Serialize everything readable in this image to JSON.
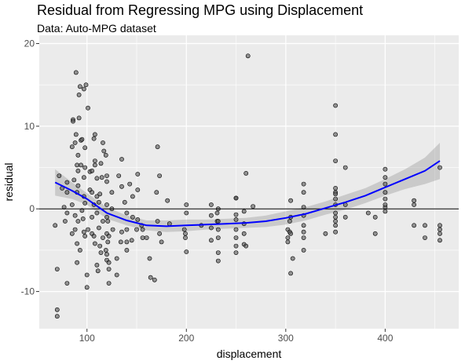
{
  "title": "Residual from Regressing MPG using Displacement",
  "subtitle": "Data: Auto-MPG dataset",
  "colors": {
    "panel_background": "#ebebeb",
    "grid_major": "#ffffff",
    "point_fill": "#555555",
    "point_stroke": "#000000",
    "smooth_line": "#0000ff",
    "confidence_band": "#999999",
    "reference_line": "#000000"
  },
  "chart_data": {
    "type": "scatter",
    "title": "Residual from Regressing MPG using Displacement",
    "subtitle": "Data: Auto-MPG dataset",
    "xlabel": "displacement",
    "ylabel": "residual",
    "xlim": [
      52,
      474
    ],
    "ylim": [
      -14.5,
      21
    ],
    "x_ticks": [
      100,
      200,
      300,
      400
    ],
    "y_ticks": [
      -10,
      0,
      10,
      20
    ],
    "x_tick_labels": [
      "100",
      "200",
      "300",
      "400"
    ],
    "y_tick_labels": [
      "-10",
      "0",
      "10",
      "20"
    ],
    "grid": true,
    "legend": "none",
    "reference_hline": 0,
    "points": [
      [
        68,
        -2
      ],
      [
        70,
        -7.3
      ],
      [
        70,
        -12.2
      ],
      [
        70,
        -13
      ],
      [
        72,
        4
      ],
      [
        75,
        2.5
      ],
      [
        77,
        0.2
      ],
      [
        78,
        -1.5
      ],
      [
        80,
        2
      ],
      [
        80,
        3.2
      ],
      [
        80,
        -0.5
      ],
      [
        80,
        -9
      ],
      [
        85,
        0.5
      ],
      [
        85,
        7.5
      ],
      [
        85,
        -3
      ],
      [
        86,
        10.8
      ],
      [
        86,
        10.6
      ],
      [
        87,
        3.5
      ],
      [
        88,
        -0.8
      ],
      [
        88,
        8
      ],
      [
        88,
        -2.5
      ],
      [
        89,
        16.5
      ],
      [
        89,
        9
      ],
      [
        90,
        5.3
      ],
      [
        90,
        2
      ],
      [
        90,
        -4.2
      ],
      [
        90,
        -6.5
      ],
      [
        91,
        4.6
      ],
      [
        91,
        6.5
      ],
      [
        91,
        2.8
      ],
      [
        91,
        -1.5
      ],
      [
        92,
        13.8
      ],
      [
        92,
        11
      ],
      [
        93,
        14.8
      ],
      [
        93,
        -5
      ],
      [
        94,
        5.3
      ],
      [
        94,
        8.3
      ],
      [
        95,
        8.4
      ],
      [
        95,
        -0.2
      ],
      [
        96,
        -1.2
      ],
      [
        97,
        14.5
      ],
      [
        97,
        3.8
      ],
      [
        97,
        1.5
      ],
      [
        97,
        -2.8
      ],
      [
        98,
        5
      ],
      [
        98,
        7.4
      ],
      [
        98,
        0.7
      ],
      [
        98,
        -3.3
      ],
      [
        99,
        15
      ],
      [
        100,
        -8
      ],
      [
        100,
        -9.5
      ],
      [
        101,
        12.2
      ],
      [
        101,
        -2.5
      ],
      [
        103,
        2.3
      ],
      [
        103,
        4.5
      ],
      [
        105,
        4.6
      ],
      [
        105,
        2
      ],
      [
        105,
        -1
      ],
      [
        105,
        -3
      ],
      [
        107,
        8.5
      ],
      [
        107,
        0.5
      ],
      [
        107,
        -3.3
      ],
      [
        108,
        9
      ],
      [
        108,
        5.8
      ],
      [
        108,
        5.3
      ],
      [
        108,
        -4.2
      ],
      [
        110,
        3.7
      ],
      [
        110,
        1.5
      ],
      [
        110,
        -0.5
      ],
      [
        110,
        -6.8
      ],
      [
        111,
        -7.5
      ],
      [
        112,
        0.8
      ],
      [
        112,
        -2.3
      ],
      [
        113,
        1.8
      ],
      [
        113,
        -4.5
      ],
      [
        114,
        5.5
      ],
      [
        114,
        -5.3
      ],
      [
        115,
        3.8
      ],
      [
        116,
        8
      ],
      [
        116,
        -1.5
      ],
      [
        116,
        -3.5
      ],
      [
        117,
        7
      ],
      [
        119,
        -5
      ],
      [
        119,
        6.5
      ],
      [
        120,
        4
      ],
      [
        120,
        3.3
      ],
      [
        120,
        0.5
      ],
      [
        120,
        -1
      ],
      [
        120,
        -3
      ],
      [
        120,
        -5.5
      ],
      [
        120,
        -6.2
      ],
      [
        121,
        -1.5
      ],
      [
        121,
        -4
      ],
      [
        122,
        -3.3
      ],
      [
        122,
        -6.5
      ],
      [
        122,
        -7.3
      ],
      [
        122,
        -9
      ],
      [
        125,
        0
      ],
      [
        125,
        2
      ],
      [
        126,
        -2.5
      ],
      [
        130,
        -6
      ],
      [
        130,
        -8
      ],
      [
        132,
        4
      ],
      [
        134,
        -4
      ],
      [
        135,
        6
      ],
      [
        135,
        2.7
      ],
      [
        135,
        -2.8
      ],
      [
        138,
        0.8
      ],
      [
        140,
        -0.5
      ],
      [
        140,
        -2.5
      ],
      [
        140,
        -4
      ],
      [
        140,
        -5
      ],
      [
        143,
        3
      ],
      [
        145,
        -3.8
      ],
      [
        146,
        1.5
      ],
      [
        146,
        -1
      ],
      [
        150,
        -2.5
      ],
      [
        151,
        4.2
      ],
      [
        151,
        2.3
      ],
      [
        151,
        -1.3
      ],
      [
        155,
        -2
      ],
      [
        156,
        -2.5
      ],
      [
        156,
        -3.5
      ],
      [
        160,
        -3.5
      ],
      [
        163,
        -6
      ],
      [
        164,
        -8.3
      ],
      [
        168,
        -8.6
      ],
      [
        170,
        2
      ],
      [
        171,
        7.5
      ],
      [
        171,
        -1.5
      ],
      [
        173,
        4
      ],
      [
        173,
        -3
      ],
      [
        175,
        -4
      ],
      [
        181,
        1
      ],
      [
        183,
        -1.8
      ],
      [
        198,
        -2.5
      ],
      [
        199,
        -3
      ],
      [
        199,
        -3.5
      ],
      [
        200,
        -5.2
      ],
      [
        200,
        -0.5
      ],
      [
        200,
        0.5
      ],
      [
        215,
        -2
      ],
      [
        225,
        -2.3
      ],
      [
        225,
        -3.8
      ],
      [
        225,
        -0.8
      ],
      [
        225,
        0.5
      ],
      [
        231,
        -0.5
      ],
      [
        231,
        -1.5
      ],
      [
        232,
        -1.5
      ],
      [
        232,
        -2.5
      ],
      [
        232,
        -3.5
      ],
      [
        232,
        -5.3
      ],
      [
        232,
        -6.3
      ],
      [
        232,
        0
      ],
      [
        250,
        1.3
      ],
      [
        250,
        1.3
      ],
      [
        250,
        -0.7
      ],
      [
        250,
        -1.3
      ],
      [
        250,
        -2.5
      ],
      [
        250,
        -3.5
      ],
      [
        250,
        -4.5
      ],
      [
        250,
        -5.3
      ],
      [
        258,
        -0.3
      ],
      [
        258,
        -1.8
      ],
      [
        258,
        -3
      ],
      [
        258,
        -4.3
      ],
      [
        260,
        4.3
      ],
      [
        260,
        -4.5
      ],
      [
        262,
        18.5
      ],
      [
        267,
        0.3
      ],
      [
        302,
        -2.5
      ],
      [
        302,
        -3.5
      ],
      [
        302,
        -4
      ],
      [
        304,
        -1.5
      ],
      [
        304,
        -2.8
      ],
      [
        305,
        1
      ],
      [
        305,
        -1
      ],
      [
        305,
        -3
      ],
      [
        305,
        -7.8
      ],
      [
        307,
        -6
      ],
      [
        318,
        -3.5
      ],
      [
        318,
        -2
      ],
      [
        318,
        0.2
      ],
      [
        318,
        -5
      ],
      [
        318,
        -2.8
      ],
      [
        318,
        -0.8
      ],
      [
        318,
        3
      ],
      [
        318,
        2
      ],
      [
        340,
        -3
      ],
      [
        350,
        12.5
      ],
      [
        350,
        9
      ],
      [
        350,
        5.8
      ],
      [
        350,
        2.5
      ],
      [
        350,
        2
      ],
      [
        350,
        1.8
      ],
      [
        350,
        1.2
      ],
      [
        350,
        0.5
      ],
      [
        350,
        -0.5
      ],
      [
        350,
        -1
      ],
      [
        350,
        -1.5
      ],
      [
        350,
        -2
      ],
      [
        350,
        -2.8
      ],
      [
        360,
        -1
      ],
      [
        360,
        0.5
      ],
      [
        360,
        5
      ],
      [
        383,
        -0.5
      ],
      [
        390,
        -1
      ],
      [
        390,
        -3
      ],
      [
        400,
        -0.3
      ],
      [
        400,
        0.2
      ],
      [
        400,
        0.5
      ],
      [
        400,
        1.2
      ],
      [
        400,
        2
      ],
      [
        400,
        3
      ],
      [
        400,
        3.8
      ],
      [
        400,
        4.8
      ],
      [
        429,
        -2
      ],
      [
        429,
        0.5
      ],
      [
        429,
        1
      ],
      [
        440,
        -2
      ],
      [
        440,
        -3.5
      ],
      [
        455,
        -2.5
      ],
      [
        455,
        -3
      ],
      [
        455,
        -3.8
      ],
      [
        455,
        -2
      ],
      [
        455,
        5
      ]
    ],
    "smooth": {
      "x": [
        68,
        85,
        100,
        120,
        140,
        160,
        180,
        200,
        220,
        240,
        260,
        280,
        300,
        320,
        340,
        360,
        380,
        400,
        420,
        440,
        455
      ],
      "y": [
        3.2,
        2.2,
        1.2,
        -0.5,
        -1.4,
        -2.0,
        -2.1,
        -2.0,
        -1.9,
        -1.8,
        -1.7,
        -1.5,
        -1.1,
        -0.6,
        0.1,
        0.8,
        1.6,
        2.6,
        3.6,
        4.6,
        5.8
      ],
      "lower": [
        1.6,
        1.2,
        0.5,
        -1.2,
        -2.0,
        -2.6,
        -2.8,
        -2.7,
        -2.5,
        -2.4,
        -2.3,
        -2.2,
        -1.9,
        -1.4,
        -0.7,
        -0.1,
        0.7,
        1.6,
        2.4,
        3.0,
        3.6
      ],
      "upper": [
        4.8,
        3.2,
        1.9,
        0.2,
        -0.8,
        -1.4,
        -1.4,
        -1.3,
        -1.3,
        -1.2,
        -1.1,
        -0.8,
        -0.3,
        0.2,
        0.9,
        1.7,
        2.5,
        3.6,
        4.8,
        6.2,
        8.0
      ]
    }
  }
}
